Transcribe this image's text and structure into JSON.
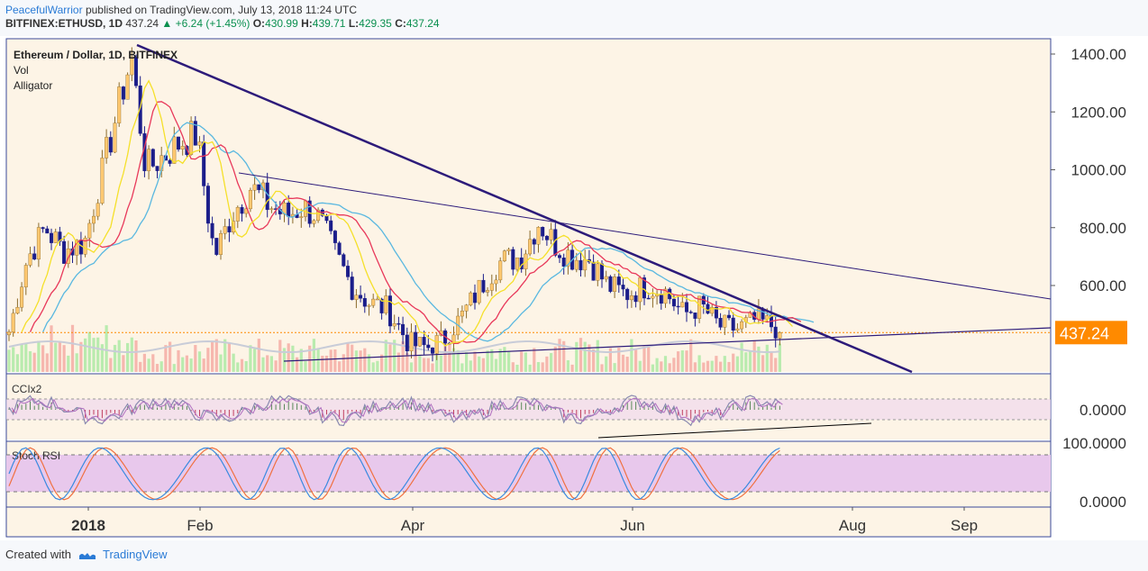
{
  "header": {
    "author": "PeacefulWarrior",
    "published": "published on TradingView.com, July 13, 2018 11:24 UTC",
    "symbol": "BITFINEX:ETHUSD, 1D",
    "last": "437.24",
    "change": "+6.24 (+1.45%)",
    "o_label": "O:",
    "o": "430.99",
    "h_label": "H:",
    "h": "439.71",
    "l_label": "L:",
    "l": "429.35",
    "c_label": "C:",
    "c": "437.24"
  },
  "legend": {
    "title": "Ethereum / Dollar, 1D, BITFINEX",
    "vol": "Vol",
    "alligator": "Alligator"
  },
  "panes": {
    "cci": "CCIx2",
    "stoch": "Stoch RSI"
  },
  "footer": {
    "created_with": "Created with",
    "brand": "TradingView"
  },
  "colors": {
    "bg": "#fdf4e6",
    "up": "#ffc870",
    "down": "#1b1d8a",
    "jaw": "#5ab8e0",
    "teeth": "#e8385a",
    "lips": "#f5e02a",
    "trend": "#2d1b7a",
    "price_tag": "#ff8a00"
  },
  "chart_data": {
    "type": "candlestick",
    "title": "Ethereum / Dollar, 1D, BITFINEX",
    "y_ticks": [
      "1400.00",
      "1200.00",
      "1000.00",
      "800.00",
      "600.00"
    ],
    "x_ticks": [
      "2018",
      "Feb",
      "Apr",
      "Jun",
      "Aug",
      "Sep"
    ],
    "last_price_label": "437.24",
    "ylim": [
      330,
      1480
    ],
    "close_series": [
      {
        "date": "2017-12-10",
        "close": 440
      },
      {
        "date": "2017-12-15",
        "close": 690
      },
      {
        "date": "2017-12-20",
        "close": 800
      },
      {
        "date": "2017-12-25",
        "close": 720
      },
      {
        "date": "2017-12-31",
        "close": 750
      },
      {
        "date": "2018-01-05",
        "close": 1000
      },
      {
        "date": "2018-01-10",
        "close": 1250
      },
      {
        "date": "2018-01-13",
        "close": 1390
      },
      {
        "date": "2018-01-17",
        "close": 1000
      },
      {
        "date": "2018-01-22",
        "close": 1050
      },
      {
        "date": "2018-01-27",
        "close": 1100
      },
      {
        "date": "2018-01-31",
        "close": 1120
      },
      {
        "date": "2018-02-05",
        "close": 700
      },
      {
        "date": "2018-02-10",
        "close": 850
      },
      {
        "date": "2018-02-15",
        "close": 940
      },
      {
        "date": "2018-02-20",
        "close": 880
      },
      {
        "date": "2018-02-25",
        "close": 840
      },
      {
        "date": "2018-03-01",
        "close": 870
      },
      {
        "date": "2018-03-05",
        "close": 850
      },
      {
        "date": "2018-03-10",
        "close": 720
      },
      {
        "date": "2018-03-15",
        "close": 600
      },
      {
        "date": "2018-03-20",
        "close": 540
      },
      {
        "date": "2018-03-25",
        "close": 520
      },
      {
        "date": "2018-03-31",
        "close": 400
      },
      {
        "date": "2018-04-05",
        "close": 385
      },
      {
        "date": "2018-04-10",
        "close": 420
      },
      {
        "date": "2018-04-15",
        "close": 500
      },
      {
        "date": "2018-04-20",
        "close": 600
      },
      {
        "date": "2018-04-25",
        "close": 680
      },
      {
        "date": "2018-05-01",
        "close": 700
      },
      {
        "date": "2018-05-06",
        "close": 820
      },
      {
        "date": "2018-05-10",
        "close": 750
      },
      {
        "date": "2018-05-15",
        "close": 700
      },
      {
        "date": "2018-05-20",
        "close": 690
      },
      {
        "date": "2018-05-25",
        "close": 600
      },
      {
        "date": "2018-05-30",
        "close": 570
      },
      {
        "date": "2018-06-05",
        "close": 600
      },
      {
        "date": "2018-06-10",
        "close": 580
      },
      {
        "date": "2018-06-15",
        "close": 500
      },
      {
        "date": "2018-06-20",
        "close": 530
      },
      {
        "date": "2018-06-25",
        "close": 460
      },
      {
        "date": "2018-06-30",
        "close": 450
      },
      {
        "date": "2018-07-05",
        "close": 480
      },
      {
        "date": "2018-07-10",
        "close": 460
      },
      {
        "date": "2018-07-13",
        "close": 437.24
      }
    ],
    "cci": {
      "label": "CCIx2",
      "y_ticks": [
        "0.0000"
      ]
    },
    "stoch_rsi": {
      "label": "Stoch RSI",
      "y_ticks": [
        "100.0000",
        "0.0000"
      ]
    }
  }
}
